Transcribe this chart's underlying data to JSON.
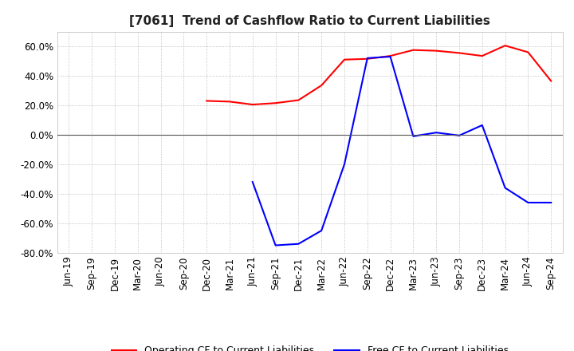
{
  "title": "[7061]  Trend of Cashflow Ratio to Current Liabilities",
  "x_labels": [
    "Jun-19",
    "Sep-19",
    "Dec-19",
    "Mar-20",
    "Jun-20",
    "Sep-20",
    "Dec-20",
    "Mar-21",
    "Jun-21",
    "Sep-21",
    "Dec-21",
    "Mar-22",
    "Jun-22",
    "Sep-22",
    "Dec-22",
    "Mar-23",
    "Jun-23",
    "Sep-23",
    "Dec-23",
    "Mar-24",
    "Jun-24",
    "Sep-24"
  ],
  "operating_cf": [
    null,
    null,
    null,
    null,
    null,
    null,
    23.0,
    22.5,
    20.5,
    21.5,
    23.5,
    33.5,
    51.0,
    51.5,
    53.5,
    57.5,
    57.0,
    55.5,
    53.5,
    60.5,
    56.0,
    36.5
  ],
  "free_cf": [
    null,
    null,
    null,
    null,
    null,
    null,
    null,
    null,
    -32.0,
    -75.0,
    -74.0,
    -65.0,
    -20.0,
    52.0,
    53.0,
    -1.0,
    1.5,
    -0.5,
    6.5,
    -36.0,
    -46.0,
    -46.0
  ],
  "ylim": [
    -80,
    70
  ],
  "yticks": [
    -80,
    -60,
    -40,
    -20,
    0,
    20,
    40,
    60
  ],
  "operating_color": "#ff0000",
  "free_color": "#0000ff",
  "grid_color": "#b0b0b0",
  "background_color": "#ffffff",
  "legend_op": "Operating CF to Current Liabilities",
  "legend_free": "Free CF to Current Liabilities",
  "title_fontsize": 11,
  "tick_fontsize": 8.5
}
